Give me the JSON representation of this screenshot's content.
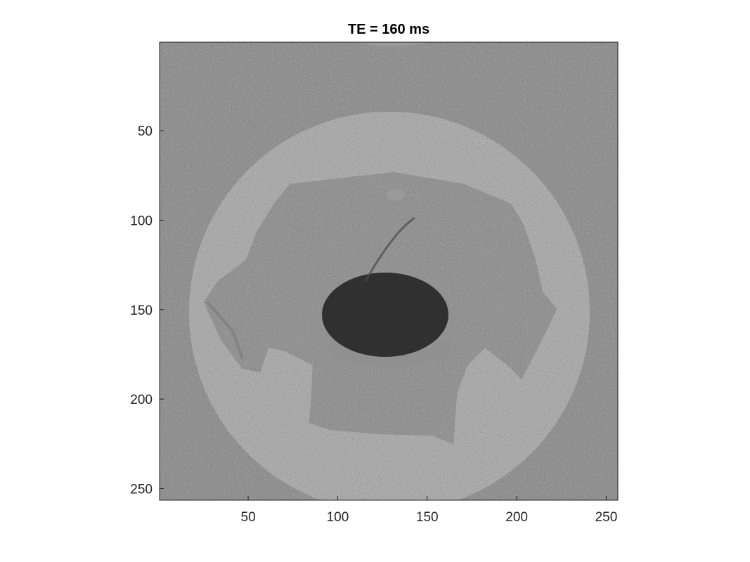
{
  "title": "TE = 160 ms",
  "x_ticks": [
    50,
    100,
    150,
    200,
    250
  ],
  "y_ticks": [
    50,
    100,
    150,
    200,
    250
  ],
  "image_extent": {
    "x": [
      1,
      256
    ],
    "y": [
      1,
      256
    ]
  },
  "colormap": "gray",
  "colors": {
    "background_noise": "#1e1e1e",
    "phantom": "#a8a8a8",
    "sample": "#2a2a2a",
    "bright_band": "#8c8c8c",
    "axis": "#262626"
  },
  "scene": {
    "phantom_circle": {
      "center": [
        129,
        153
      ],
      "radius": 110
    },
    "top_sliver": {
      "center": [
        130,
        0
      ],
      "radius": 40
    }
  }
}
